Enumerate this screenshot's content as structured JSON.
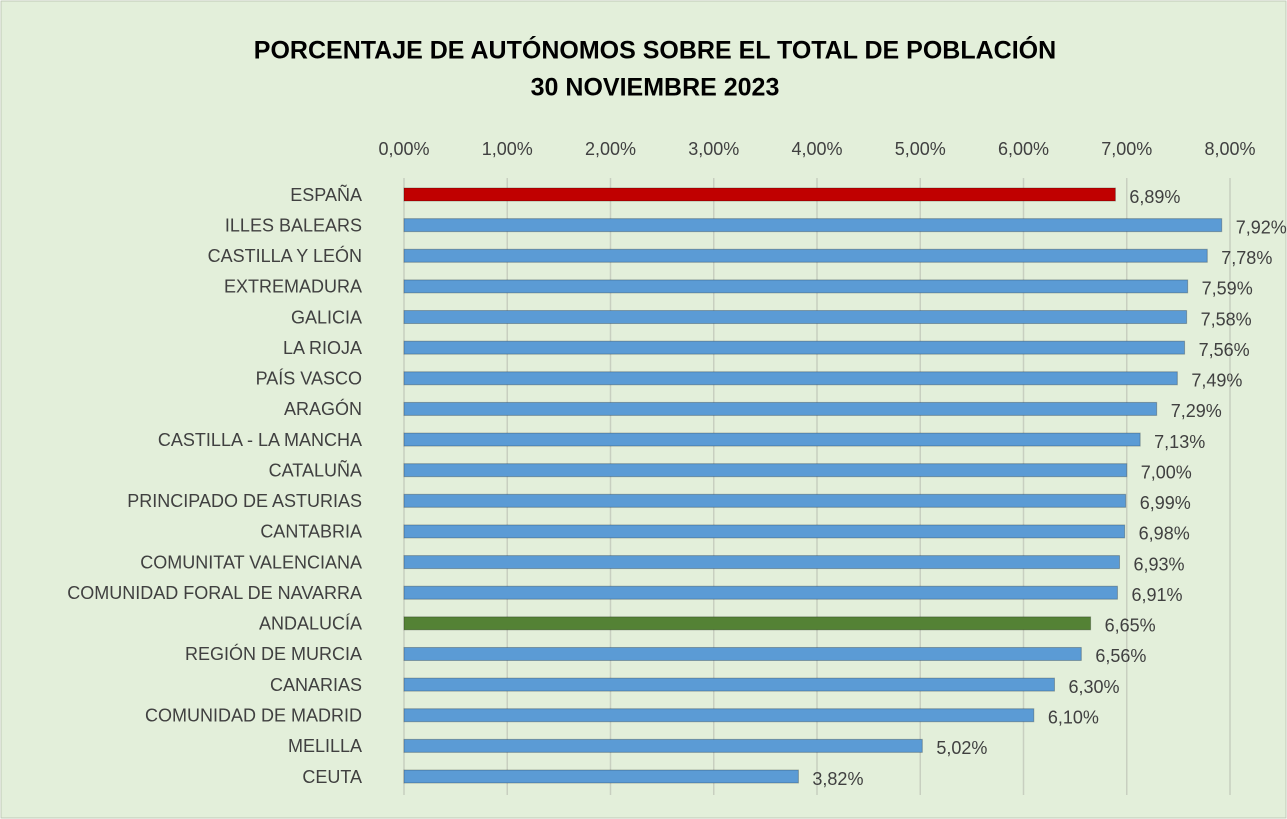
{
  "chart_data": {
    "type": "bar",
    "orientation": "horizontal",
    "title": "PORCENTAJE DE AUTÓNOMOS SOBRE EL TOTAL DE POBLACIÓN",
    "subtitle": "30 NOVIEMBRE 2023",
    "categories": [
      "ESPAÑA",
      "ILLES BALEARS",
      "CASTILLA Y LEÓN",
      "EXTREMADURA",
      "GALICIA",
      "LA RIOJA",
      "PAÍS VASCO",
      "ARAGÓN",
      "CASTILLA - LA MANCHA",
      "CATALUÑA",
      "PRINCIPADO DE ASTURIAS",
      "CANTABRIA",
      "COMUNITAT VALENCIANA",
      "COMUNIDAD FORAL DE NAVARRA",
      "ANDALUCÍA",
      "REGIÓN DE MURCIA",
      "CANARIAS",
      "COMUNIDAD DE MADRID",
      "MELILLA",
      "CEUTA"
    ],
    "values": [
      6.89,
      7.92,
      7.78,
      7.59,
      7.58,
      7.56,
      7.49,
      7.29,
      7.13,
      7.0,
      6.99,
      6.98,
      6.93,
      6.91,
      6.65,
      6.56,
      6.3,
      6.1,
      5.02,
      3.82
    ],
    "value_labels": [
      "6,89%",
      "7,92%",
      "7,78%",
      "7,59%",
      "7,58%",
      "7,56%",
      "7,49%",
      "7,29%",
      "7,13%",
      "7,00%",
      "6,99%",
      "6,98%",
      "6,93%",
      "6,91%",
      "6,65%",
      "6,56%",
      "6,30%",
      "6,10%",
      "5,02%",
      "3,82%"
    ],
    "colors": [
      "#c00000",
      "#5b9bd5",
      "#5b9bd5",
      "#5b9bd5",
      "#5b9bd5",
      "#5b9bd5",
      "#5b9bd5",
      "#5b9bd5",
      "#5b9bd5",
      "#5b9bd5",
      "#5b9bd5",
      "#5b9bd5",
      "#5b9bd5",
      "#5b9bd5",
      "#548235",
      "#5b9bd5",
      "#5b9bd5",
      "#5b9bd5",
      "#5b9bd5",
      "#5b9bd5"
    ],
    "xlim": [
      0,
      8
    ],
    "xticks": [
      {
        "value": 0,
        "label": "0,00%"
      },
      {
        "value": 1,
        "label": "1,00%"
      },
      {
        "value": 2,
        "label": "2,00%"
      },
      {
        "value": 3,
        "label": "3,00%"
      },
      {
        "value": 4,
        "label": "4,00%"
      },
      {
        "value": 5,
        "label": "5,00%"
      },
      {
        "value": 6,
        "label": "6,00%"
      },
      {
        "value": 7,
        "label": "7,00%"
      },
      {
        "value": 8,
        "label": "8,00%"
      }
    ],
    "grid": true
  }
}
